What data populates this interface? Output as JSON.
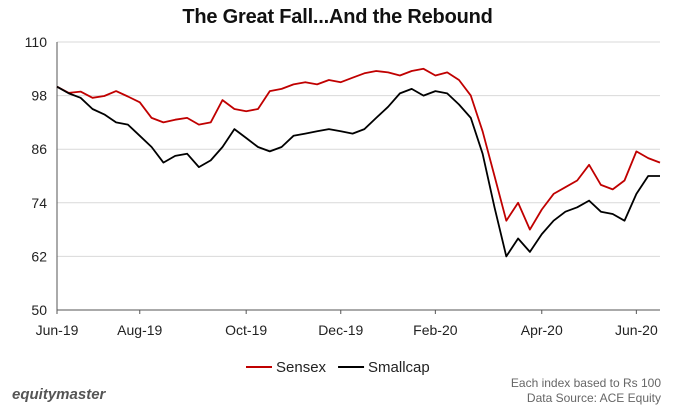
{
  "chart_data": {
    "type": "line",
    "title": "The Great Fall...And the Rebound",
    "xlabel": "",
    "ylabel": "",
    "ylim": [
      50,
      110
    ],
    "yticks": [
      50,
      62,
      74,
      86,
      98,
      110
    ],
    "grid": "horizontal",
    "legend_position": "bottom",
    "xticks": [
      "Jun-19",
      "Aug-19",
      "Oct-19",
      "Dec-19",
      "Feb-20",
      "Apr-20",
      "Jun-20"
    ],
    "x": [
      "Jun-19",
      "Jun-19",
      "Jun-19",
      "Jul-19",
      "Jul-19",
      "Jul-19",
      "Jul-19",
      "Aug-19",
      "Aug-19",
      "Aug-19",
      "Aug-19",
      "Aug-19",
      "Sep-19",
      "Sep-19",
      "Sep-19",
      "Sep-19",
      "Oct-19",
      "Oct-19",
      "Oct-19",
      "Oct-19",
      "Nov-19",
      "Nov-19",
      "Nov-19",
      "Nov-19",
      "Dec-19",
      "Dec-19",
      "Dec-19",
      "Dec-19",
      "Jan-20",
      "Jan-20",
      "Jan-20",
      "Jan-20",
      "Feb-20",
      "Feb-20",
      "Feb-20",
      "Feb-20",
      "Mar-20",
      "Mar-20",
      "Mar-20",
      "Mar-20",
      "Mar-20",
      "Apr-20",
      "Apr-20",
      "Apr-20",
      "Apr-20",
      "May-20",
      "May-20",
      "May-20",
      "May-20",
      "Jun-20",
      "Jun-20",
      "Jun-20"
    ],
    "series": [
      {
        "name": "Sensex",
        "color": "#c00000",
        "values": [
          100,
          98.6,
          98.9,
          97.5,
          97.9,
          99.0,
          97.8,
          96.5,
          93.0,
          92.0,
          92.6,
          93.0,
          91.5,
          92.0,
          97.0,
          95.0,
          94.5,
          95.0,
          99.0,
          99.5,
          100.5,
          101.0,
          100.5,
          101.5,
          101.0,
          102.0,
          103.0,
          103.5,
          103.2,
          102.5,
          103.5,
          104.0,
          102.5,
          103.2,
          101.5,
          98.0,
          90.0,
          80.0,
          70.0,
          74.0,
          68.0,
          72.5,
          76.0,
          77.5,
          79.0,
          82.5,
          78.0,
          77.0,
          79.0,
          85.5,
          84.0,
          83.0
        ]
      },
      {
        "name": "Smallcap",
        "color": "#000000",
        "values": [
          100,
          98.5,
          97.5,
          95.0,
          93.8,
          92.0,
          91.5,
          89.0,
          86.5,
          83.0,
          84.5,
          85.0,
          82.0,
          83.5,
          86.5,
          90.5,
          88.5,
          86.5,
          85.5,
          86.5,
          89.0,
          89.5,
          90.0,
          90.5,
          90.0,
          89.5,
          90.5,
          93.0,
          95.5,
          98.5,
          99.5,
          98.0,
          99.0,
          98.5,
          96.0,
          93.0,
          85.0,
          73.0,
          62.0,
          66.0,
          63.0,
          67.0,
          70.0,
          72.0,
          73.0,
          74.5,
          72.0,
          71.5,
          70.0,
          76.0,
          80.0,
          80.0
        ]
      }
    ]
  },
  "footer": {
    "brand": "equitymaster",
    "note_1": "Each index based to Rs 100",
    "note_2": "Data Source: ACE Equity"
  }
}
